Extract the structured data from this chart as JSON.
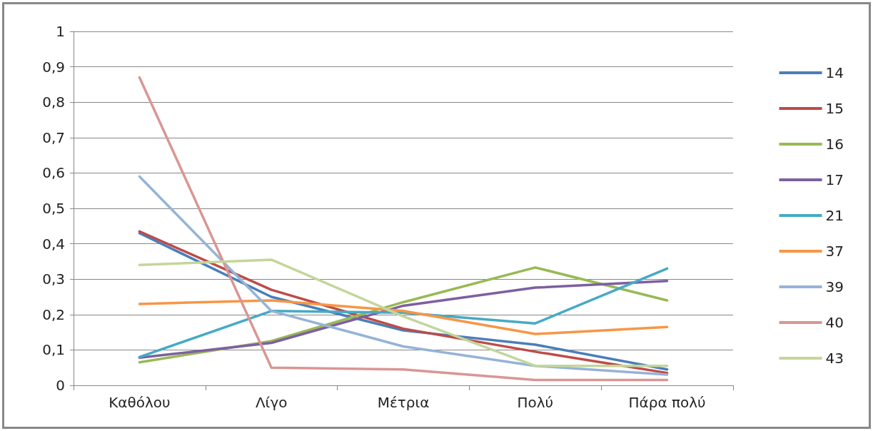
{
  "chart_data": {
    "type": "line",
    "categories": [
      "Καθόλου",
      "Λίγο",
      "Μέτρια",
      "Πολύ",
      "Πάρα πολύ"
    ],
    "ylim": [
      0,
      1
    ],
    "yticks": [
      0,
      {
        "value": 0.1,
        "label": "0,1"
      },
      {
        "value": 0.2,
        "label": "0,2"
      },
      {
        "value": 0.3,
        "label": "0,3"
      },
      {
        "value": 0.4,
        "label": "0,4"
      },
      {
        "value": 0.5,
        "label": "0,5"
      },
      {
        "value": 0.6,
        "label": "0,6"
      },
      {
        "value": 0.7,
        "label": "0,7"
      },
      {
        "value": 0.8,
        "label": "0,8"
      },
      {
        "value": 0.9,
        "label": "0,9"
      },
      1
    ],
    "grid": "y",
    "legend": "right",
    "marker": "none",
    "line_style": "solid",
    "series": [
      {
        "name": "14",
        "color": "#4a7ebb",
        "values": [
          0.43,
          0.25,
          0.155,
          0.115,
          0.045
        ]
      },
      {
        "name": "15",
        "color": "#be4b48",
        "values": [
          0.435,
          0.27,
          0.16,
          0.095,
          0.035
        ]
      },
      {
        "name": "16",
        "color": "#98b954",
        "values": [
          0.065,
          0.125,
          0.235,
          0.333,
          0.24
        ]
      },
      {
        "name": "17",
        "color": "#7d60a0",
        "values": [
          0.078,
          0.12,
          0.225,
          0.276,
          0.295
        ]
      },
      {
        "name": "21",
        "color": "#46aac5",
        "values": [
          0.08,
          0.21,
          0.205,
          0.175,
          0.33
        ]
      },
      {
        "name": "37",
        "color": "#f79646",
        "values": [
          0.23,
          0.24,
          0.21,
          0.145,
          0.165
        ]
      },
      {
        "name": "39",
        "color": "#95b3d7",
        "values": [
          0.59,
          0.21,
          0.11,
          0.055,
          0.03
        ]
      },
      {
        "name": "40",
        "color": "#d99694",
        "values": [
          0.87,
          0.05,
          0.045,
          0.015,
          0.015
        ]
      },
      {
        "name": "43",
        "color": "#c3d69b",
        "values": [
          0.34,
          0.355,
          0.195,
          0.055,
          0.055
        ]
      }
    ]
  }
}
